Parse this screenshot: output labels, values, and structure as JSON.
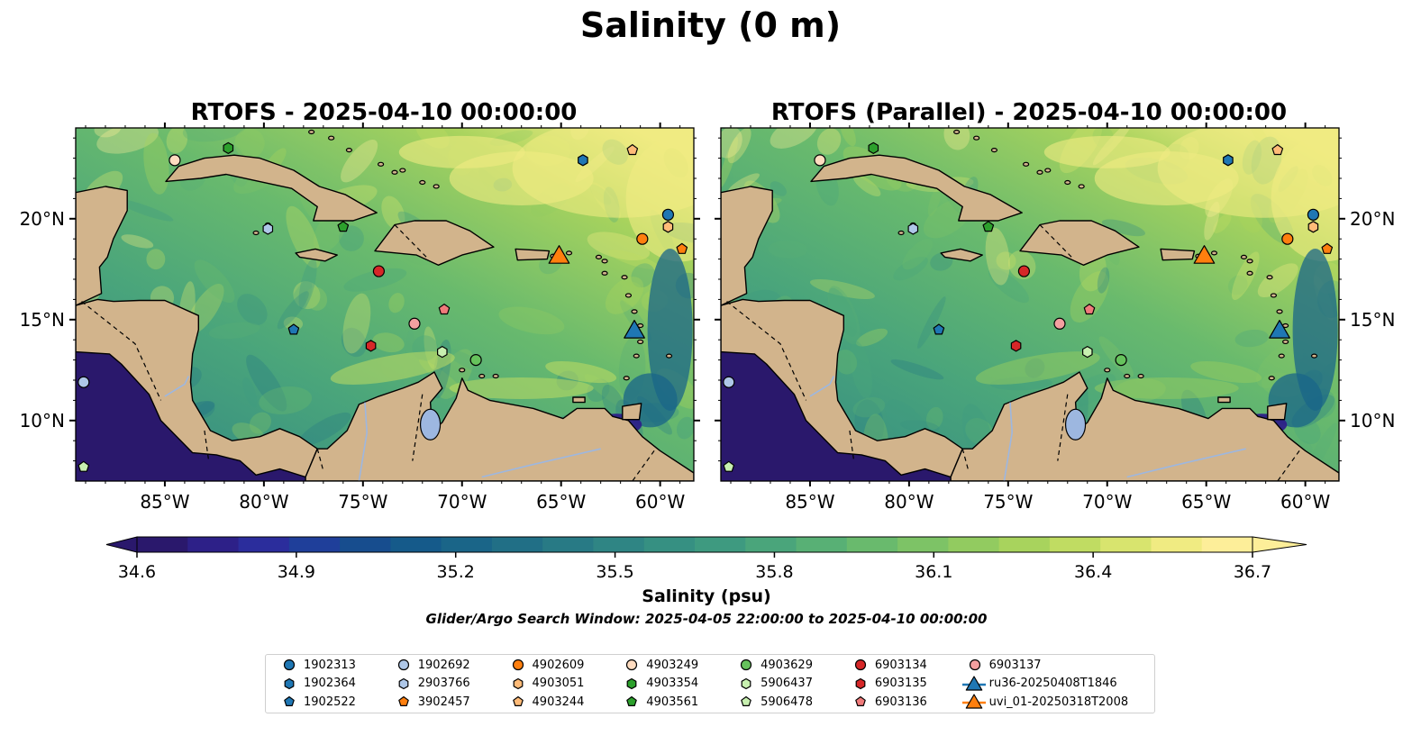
{
  "figure": {
    "title": "Salinity (0 m)"
  },
  "panels": [
    {
      "title": "RTOFS - 2025-04-10 00:00:00",
      "variant": "operational"
    },
    {
      "title": "RTOFS (Parallel) - 2025-04-10 00:00:00",
      "variant": "parallel"
    }
  ],
  "map": {
    "lon_range": [
      -89.5,
      -58.3
    ],
    "lat_range": [
      7.0,
      24.5
    ],
    "lon_ticks": [
      "85°W",
      "80°W",
      "75°W",
      "70°W",
      "65°W",
      "60°W"
    ],
    "lat_ticks": [
      "20°N",
      "15°N",
      "10°N"
    ],
    "lon_tick_values": [
      -85,
      -80,
      -75,
      -70,
      -65,
      -60
    ],
    "lat_tick_values": [
      20,
      15,
      10
    ],
    "land_color": "#d2b48c",
    "ocean_extremes": {
      "low": "#2a1a6a",
      "high": "#fbe99a"
    }
  },
  "colorbar": {
    "label": "Salinity (psu)",
    "ticks": [
      "34.6",
      "34.9",
      "35.2",
      "35.5",
      "35.8",
      "36.1",
      "36.4",
      "36.7"
    ],
    "tick_values": [
      34.6,
      34.9,
      35.2,
      35.5,
      35.8,
      36.1,
      36.4,
      36.7
    ],
    "range": [
      34.6,
      36.7
    ],
    "extend": "both",
    "colormap": "haline",
    "colors": [
      "#2a186c",
      "#2d2088",
      "#2b2d9c",
      "#1f3f9a",
      "#174d8e",
      "#155a8a",
      "#1a6588",
      "#216f86",
      "#287a85",
      "#2f8584",
      "#369082",
      "#3e9a80",
      "#4aa57b",
      "#58b075",
      "#69ba6d",
      "#7dc366",
      "#92cb60",
      "#a8d35d",
      "#c0dc62",
      "#d8e46e",
      "#f0eb82",
      "#fdee99"
    ]
  },
  "note": "Glider/Argo Search Window: 2025-04-05 22:00:00 to 2025-04-10 00:00:00",
  "legend": [
    {
      "label": "1902313",
      "shape": "circle",
      "color": "#1f77b4"
    },
    {
      "label": "1902364",
      "shape": "hexagon",
      "color": "#1f77b4"
    },
    {
      "label": "1902522",
      "shape": "pentagon",
      "color": "#1f77b4"
    },
    {
      "label": "1902692",
      "shape": "circle",
      "color": "#aec7e8"
    },
    {
      "label": "2903766",
      "shape": "hexagon",
      "color": "#aec7e8"
    },
    {
      "label": "3902457",
      "shape": "pentagon",
      "color": "#ff7f0e"
    },
    {
      "label": "4902609",
      "shape": "circle",
      "color": "#ff7f0e"
    },
    {
      "label": "4903051",
      "shape": "hexagon",
      "color": "#ffbb78"
    },
    {
      "label": "4903244",
      "shape": "pentagon",
      "color": "#ffbb78"
    },
    {
      "label": "4903249",
      "shape": "circle",
      "color": "#ffdcc0"
    },
    {
      "label": "4903354",
      "shape": "hexagon",
      "color": "#2ca02c"
    },
    {
      "label": "4903561",
      "shape": "pentagon",
      "color": "#2ca02c"
    },
    {
      "label": "4903629",
      "shape": "circle",
      "color": "#66c25c"
    },
    {
      "label": "5906437",
      "shape": "hexagon",
      "color": "#c8f0b0"
    },
    {
      "label": "5906478",
      "shape": "pentagon",
      "color": "#c8f0b0"
    },
    {
      "label": "6903134",
      "shape": "circle",
      "color": "#d62728"
    },
    {
      "label": "6903135",
      "shape": "hexagon",
      "color": "#d62728"
    },
    {
      "label": "6903136",
      "shape": "pentagon",
      "color": "#f07b7b"
    },
    {
      "label": "6903137",
      "shape": "circle",
      "color": "#f4a0a0"
    },
    {
      "label": "ru36-20250408T1846",
      "shape": "triangle",
      "color": "#1f77b4"
    },
    {
      "label": "uvi_01-20250318T2008",
      "shape": "triangle",
      "color": "#ff7f0e"
    }
  ],
  "markers": [
    {
      "id": "1902313",
      "lon": -59.6,
      "lat": 20.2
    },
    {
      "id": "1902364",
      "lon": -63.9,
      "lat": 22.9
    },
    {
      "id": "1902522",
      "lon": -78.5,
      "lat": 14.5
    },
    {
      "id": "1902692",
      "lon": -89.1,
      "lat": 11.9
    },
    {
      "id": "2903766",
      "lon": -79.8,
      "lat": 19.5
    },
    {
      "id": "3902457",
      "lon": -58.9,
      "lat": 18.5
    },
    {
      "id": "4902609",
      "lon": -60.9,
      "lat": 19.0
    },
    {
      "id": "4903051",
      "lon": -59.6,
      "lat": 19.6
    },
    {
      "id": "4903244",
      "lon": -61.4,
      "lat": 23.4
    },
    {
      "id": "4903249",
      "lon": -84.5,
      "lat": 22.9
    },
    {
      "id": "4903354",
      "lon": -81.8,
      "lat": 23.5
    },
    {
      "id": "4903561",
      "lon": -76.0,
      "lat": 19.6
    },
    {
      "id": "4903629",
      "lon": -69.3,
      "lat": 13.0
    },
    {
      "id": "5906437",
      "lon": -71.0,
      "lat": 13.4
    },
    {
      "id": "5906478",
      "lon": -89.1,
      "lat": 7.7
    },
    {
      "id": "6903134",
      "lon": -74.2,
      "lat": 17.4
    },
    {
      "id": "6903135",
      "lon": -74.6,
      "lat": 13.7
    },
    {
      "id": "6903136",
      "lon": -70.9,
      "lat": 15.5
    },
    {
      "id": "6903137",
      "lon": -72.4,
      "lat": 14.8
    },
    {
      "id": "ru36-20250408T1846",
      "lon": -61.3,
      "lat": 14.5
    },
    {
      "id": "uvi_01-20250318T2008",
      "lon": -65.1,
      "lat": 18.2
    }
  ]
}
